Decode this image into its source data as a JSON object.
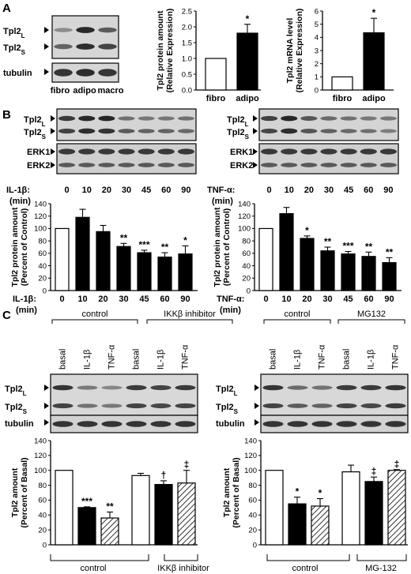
{
  "panels": {
    "a": "A",
    "b": "B",
    "c": "C"
  },
  "blot_labels": {
    "tpl2": "Tpl2",
    "long_sub": "L",
    "short_sub": "S",
    "tubulin": "tubulin",
    "erk1": "ERK1",
    "erk2": "ERK2"
  },
  "panelA": {
    "lanes": [
      "fibro",
      "adipo",
      "macro"
    ]
  },
  "panelB": {
    "time_values": [
      "0",
      "10",
      "20",
      "30",
      "45",
      "60",
      "90"
    ],
    "il1b_label": "IL-1β:",
    "tnfa_label": "TNF-α:",
    "min_label": "(min)"
  },
  "panelC": {
    "left_top_groups": [
      "control",
      "IKKβ inhibitor"
    ],
    "right_top_groups": [
      "control",
      "MG132"
    ],
    "lanes": [
      "basal",
      "IL-1β",
      "TNF-α"
    ],
    "left_bottom_groups": [
      "control",
      "IKKβ inhibitor"
    ],
    "right_bottom_groups": [
      "control",
      "MG-132"
    ]
  },
  "chart_data": [
    {
      "type": "bar",
      "id": "a-protein",
      "categories": [
        "fibro",
        "adipo"
      ],
      "values": [
        1.0,
        1.8
      ],
      "errors": [
        0,
        0.28
      ],
      "significance": [
        "",
        "*"
      ],
      "ylabel": [
        "Tpl2 protein amount",
        "(Relative Expression)"
      ],
      "ylim": [
        0,
        2.5
      ],
      "yticks": [
        "0.0",
        "0.5",
        "1.0",
        "1.5",
        "2.0",
        "2.5"
      ],
      "fills": [
        "white",
        "black"
      ]
    },
    {
      "type": "bar",
      "id": "a-mrna",
      "categories": [
        "fibro",
        "adipo"
      ],
      "values": [
        1.0,
        4.35
      ],
      "errors": [
        0,
        1.1
      ],
      "significance": [
        "",
        "*"
      ],
      "ylabel": [
        "Tpl2 mRNA level",
        "(Relative Expression)"
      ],
      "ylim": [
        0,
        6
      ],
      "yticks": [
        "0",
        "1",
        "2",
        "3",
        "4",
        "5",
        "6"
      ],
      "fills": [
        "white",
        "black"
      ]
    },
    {
      "type": "bar",
      "id": "b-il1b",
      "categories": [
        "0",
        "10",
        "20",
        "30",
        "45",
        "60",
        "90"
      ],
      "values": [
        100,
        118,
        95,
        71,
        61,
        54,
        59
      ],
      "errors": [
        0,
        13,
        10,
        5,
        4,
        7,
        13
      ],
      "significance": [
        "",
        "",
        "",
        "**",
        "***",
        "**",
        "*"
      ],
      "ylabel": [
        "Tpl2 protein amount",
        "(Percent of Control)"
      ],
      "xlabel": [
        "IL-1β:",
        "(min)"
      ],
      "ylim": [
        0,
        140
      ],
      "yticks": [
        "0",
        "20",
        "40",
        "60",
        "80",
        "100",
        "120",
        "140"
      ],
      "fills": [
        "white",
        "black",
        "black",
        "black",
        "black",
        "black",
        "black"
      ]
    },
    {
      "type": "bar",
      "id": "b-tnfa",
      "categories": [
        "0",
        "10",
        "20",
        "30",
        "45",
        "60",
        "90"
      ],
      "values": [
        100,
        124,
        84,
        64,
        59,
        55,
        45
      ],
      "errors": [
        0,
        10,
        4,
        6,
        4,
        7,
        8
      ],
      "significance": [
        "",
        "",
        "*",
        "**",
        "***",
        "**",
        "**"
      ],
      "ylabel": [
        "Tpl2 protein amount",
        "(Percent of Control)"
      ],
      "xlabel": [
        "TNF-α:",
        "(min)"
      ],
      "ylim": [
        0,
        140
      ],
      "yticks": [
        "0",
        "20",
        "40",
        "60",
        "80",
        "100",
        "120",
        "140"
      ],
      "fills": [
        "white",
        "black",
        "black",
        "black",
        "black",
        "black",
        "black"
      ]
    },
    {
      "type": "bar",
      "id": "c-ikk",
      "categories": [
        "basal",
        "IL-1β",
        "TNF-α",
        "basal",
        "IL-1β",
        "TNF-α"
      ],
      "values": [
        100,
        50,
        36,
        93,
        81,
        83
      ],
      "errors": [
        0,
        1,
        8,
        3,
        5,
        17
      ],
      "significance": [
        "",
        "***",
        "**",
        "",
        "†",
        "‡"
      ],
      "ylabel": [
        "Tpl2 amount",
        "(Percent of Basal)"
      ],
      "ylim": [
        0,
        140
      ],
      "yticks": [
        "0",
        "20",
        "40",
        "60",
        "80",
        "100",
        "120",
        "140"
      ],
      "fills": [
        "white",
        "black",
        "hatch",
        "white",
        "black",
        "hatch"
      ],
      "groups": [
        "control",
        "IKKβ inhibitor"
      ]
    },
    {
      "type": "bar",
      "id": "c-mg132",
      "categories": [
        "basal",
        "IL-1β",
        "TNF-α",
        "basal",
        "IL-1β",
        "TNF-α"
      ],
      "values": [
        100,
        55,
        52,
        98,
        85,
        100
      ],
      "errors": [
        0,
        9,
        10,
        9,
        6,
        1
      ],
      "significance": [
        "",
        "*",
        "*",
        "",
        "‡",
        "‡"
      ],
      "ylabel": [
        "Tpl2 amount",
        "(Percent of Basal)"
      ],
      "ylim": [
        0,
        140
      ],
      "yticks": [
        "0",
        "20",
        "40",
        "60",
        "80",
        "100",
        "120",
        "140"
      ],
      "fills": [
        "white",
        "black",
        "hatch",
        "white",
        "black",
        "hatch"
      ],
      "groups": [
        "control",
        "MG-132"
      ]
    }
  ]
}
